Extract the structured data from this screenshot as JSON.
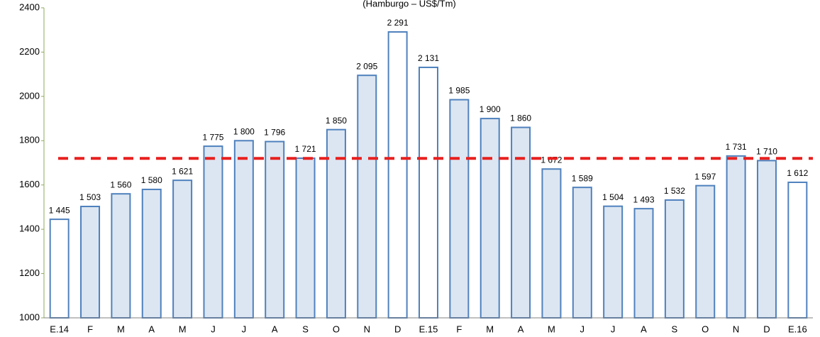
{
  "chart_data": {
    "type": "bar",
    "title": "(Hamburgo – US$/Tm)",
    "categories": [
      "E.14",
      "F",
      "M",
      "A",
      "M",
      "J",
      "J",
      "A",
      "S",
      "O",
      "N",
      "D",
      "E.15",
      "F",
      "M",
      "A",
      "M",
      "J",
      "J",
      "A",
      "S",
      "O",
      "N",
      "D",
      "E.16"
    ],
    "values": [
      1445,
      1503,
      1560,
      1580,
      1621,
      1775,
      1800,
      1796,
      1721,
      1850,
      2095,
      2291,
      2131,
      1985,
      1900,
      1860,
      1672,
      1589,
      1504,
      1493,
      1532,
      1597,
      1731,
      1710,
      1612
    ],
    "value_labels": [
      "1 445",
      "1 503",
      "1 560",
      "1 580",
      "1 621",
      "1 775",
      "1 800",
      "1 796",
      "1 721",
      "1 850",
      "2 095",
      "2 291",
      "2 131",
      "1 985",
      "1 900",
      "1 860",
      "1 672",
      "1 589",
      "1 504",
      "1 493",
      "1 532",
      "1 597",
      "1 731",
      "1 710",
      "1 612"
    ],
    "colors": [
      "#ffffff",
      "#dce6f2",
      "#dce6f2",
      "#dce6f2",
      "#dce6f2",
      "#dce6f2",
      "#dce6f2",
      "#dce6f2",
      "#dce6f2",
      "#dce6f2",
      "#dce6f2",
      "#ffffff",
      "#ffffff",
      "#dce6f2",
      "#dce6f2",
      "#dce6f2",
      "#dce6f2",
      "#dce6f2",
      "#dce6f2",
      "#dce6f2",
      "#dce6f2",
      "#dce6f2",
      "#dce6f2",
      "#dce6f2",
      "#ffffff"
    ],
    "border_color": "#4f81bd",
    "ylim": [
      1000,
      2400
    ],
    "yticks": [
      1000,
      1200,
      1400,
      1600,
      1800,
      2000,
      2200,
      2400
    ],
    "reference_line": {
      "value": 1720,
      "color": "#e8201e"
    }
  }
}
